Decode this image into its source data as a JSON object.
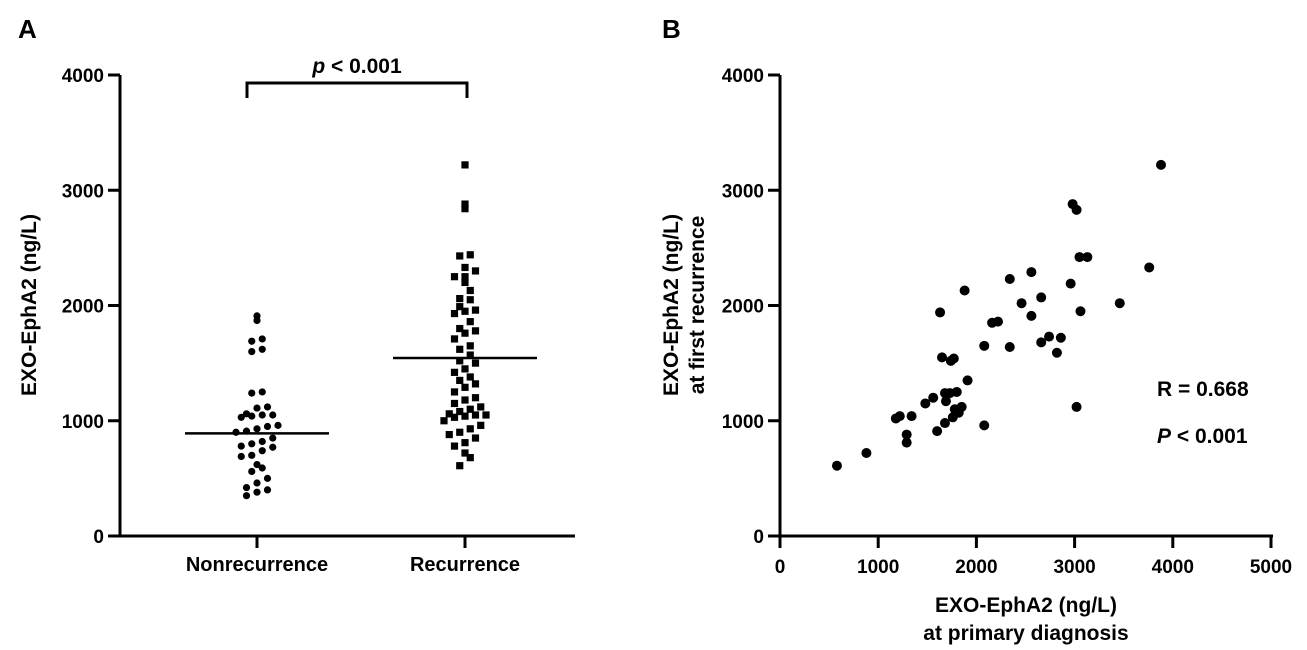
{
  "panels": {
    "a": {
      "letter": "A"
    },
    "b": {
      "letter": "B"
    }
  },
  "chart_data": [
    {
      "type": "scatter",
      "subtype": "dot-plot",
      "ylabel": "EXO-EphA2 (ng/L)",
      "ylim": [
        0,
        4000
      ],
      "yticks": [
        "0",
        "1000",
        "2000",
        "3000",
        "4000"
      ],
      "categories": [
        "Nonrecurrence",
        "Recurrence"
      ],
      "bracket": {
        "prefix": "p",
        "text": " < 0.001"
      },
      "series": [
        {
          "category": "Nonrecurrence",
          "marker": "circle",
          "mean": 890,
          "values": [
            1910,
            1870,
            1710,
            1690,
            1620,
            1600,
            1250,
            1240,
            1120,
            1110,
            1060,
            1050,
            1050,
            1040,
            1030,
            960,
            950,
            930,
            910,
            900,
            850,
            820,
            800,
            780,
            770,
            740,
            700,
            690,
            620,
            590,
            560,
            500,
            460,
            420,
            400,
            380,
            350
          ]
        },
        {
          "category": "Recurrence",
          "marker": "square",
          "mean": 1545,
          "values": [
            3220,
            2880,
            2840,
            2440,
            2430,
            2330,
            2300,
            2250,
            2250,
            2200,
            2130,
            2060,
            2050,
            1990,
            1960,
            1950,
            1930,
            1860,
            1800,
            1780,
            1760,
            1710,
            1650,
            1620,
            1570,
            1520,
            1500,
            1450,
            1420,
            1380,
            1350,
            1320,
            1290,
            1250,
            1200,
            1180,
            1150,
            1120,
            1100,
            1080,
            1060,
            1050,
            1050,
            1040,
            1030,
            1000,
            960,
            930,
            900,
            880,
            850,
            810,
            780,
            720,
            680,
            610
          ]
        }
      ]
    },
    {
      "type": "scatter",
      "xlabel_lines": [
        "EXO-EphA2 (ng/L)",
        "at primary diagnosis"
      ],
      "ylabel_lines": [
        "EXO-EphA2 (ng/L)",
        "at first recurrence"
      ],
      "xlim": [
        0,
        5000
      ],
      "ylim": [
        0,
        4000
      ],
      "xticks": [
        "0",
        "1000",
        "2000",
        "3000",
        "4000",
        "5000"
      ],
      "yticks": [
        "0",
        "1000",
        "2000",
        "3000",
        "4000"
      ],
      "annotations": {
        "r": "R = 0.668",
        "p_prefix": "P",
        "p_text": " < 0.001"
      },
      "points": [
        [
          580,
          610
        ],
        [
          880,
          720
        ],
        [
          1180,
          1020
        ],
        [
          1220,
          1040
        ],
        [
          1290,
          880
        ],
        [
          1290,
          810
        ],
        [
          1340,
          1040
        ],
        [
          1480,
          1150
        ],
        [
          1560,
          1200
        ],
        [
          1600,
          910
        ],
        [
          1630,
          1940
        ],
        [
          1650,
          1550
        ],
        [
          1680,
          1240
        ],
        [
          1680,
          980
        ],
        [
          1690,
          1170
        ],
        [
          1730,
          1240
        ],
        [
          1740,
          1520
        ],
        [
          1760,
          1030
        ],
        [
          1770,
          1540
        ],
        [
          1780,
          1100
        ],
        [
          1800,
          1250
        ],
        [
          1820,
          1070
        ],
        [
          1850,
          1120
        ],
        [
          1880,
          2130
        ],
        [
          1910,
          1350
        ],
        [
          2080,
          960
        ],
        [
          2080,
          1650
        ],
        [
          2160,
          1850
        ],
        [
          2220,
          1860
        ],
        [
          2340,
          2230
        ],
        [
          2340,
          1640
        ],
        [
          2460,
          2020
        ],
        [
          2560,
          1910
        ],
        [
          2560,
          2290
        ],
        [
          2660,
          2070
        ],
        [
          2660,
          1680
        ],
        [
          2740,
          1730
        ],
        [
          2820,
          1590
        ],
        [
          2860,
          1720
        ],
        [
          2960,
          2190
        ],
        [
          2980,
          2880
        ],
        [
          3020,
          2830
        ],
        [
          3020,
          1120
        ],
        [
          3050,
          2420
        ],
        [
          3060,
          1950
        ],
        [
          3130,
          2420
        ],
        [
          3460,
          2020
        ],
        [
          3760,
          2330
        ],
        [
          3880,
          3220
        ]
      ]
    }
  ]
}
